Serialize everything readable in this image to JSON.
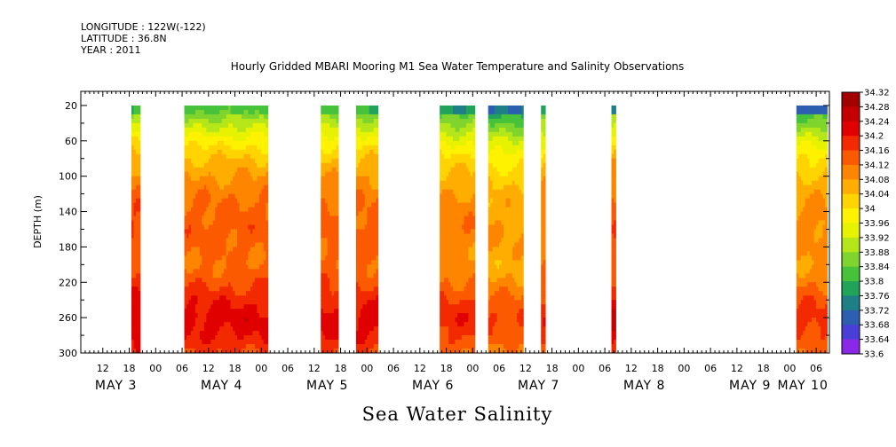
{
  "header": {
    "longitude": "LONGITUDE : 122W(-122)",
    "latitude": "LATITUDE : 36.8N",
    "year": "YEAR : 2011"
  },
  "plot_title": "Hourly Gridded MBARI Mooring M1 Sea Water Temperature and Salinity Observations",
  "variable_title": "Sea Water Salinity",
  "chart_data": {
    "type": "heatmap",
    "title": "Hourly Gridded MBARI Mooring M1 Sea Water Temperature and Salinity Observations",
    "xlabel": "",
    "ylabel": "DEPTH (m)",
    "ylim": [
      300,
      4
    ],
    "y_reversed": true,
    "y_ticks": [
      20,
      60,
      100,
      140,
      180,
      220,
      260,
      300
    ],
    "x_unit": "hours since May 3 00:00 (2011)",
    "xlim": [
      7,
      177
    ],
    "x_tick_labels": [
      "12",
      "18",
      "00",
      "06",
      "12",
      "18",
      "00",
      "06",
      "12",
      "18",
      "00",
      "06",
      "12",
      "18",
      "00",
      "06",
      "12",
      "18",
      "00",
      "06",
      "12",
      "18",
      "00",
      "06",
      "12",
      "18",
      "00",
      "06"
    ],
    "x_tick_hours": [
      12,
      18,
      24,
      30,
      36,
      42,
      48,
      54,
      60,
      66,
      72,
      78,
      84,
      90,
      96,
      102,
      108,
      114,
      120,
      126,
      132,
      138,
      144,
      150,
      156,
      162,
      168,
      174
    ],
    "date_labels": [
      "MAY  3",
      "MAY  4",
      "MAY  5",
      "MAY  6",
      "MAY  7",
      "MAY  8",
      "MAY  9",
      "MAY 10"
    ],
    "date_hours": [
      15,
      39,
      63,
      87,
      111,
      135,
      159,
      171
    ],
    "colorbar": {
      "levels": [
        34.32,
        34.28,
        34.24,
        34.2,
        34.16,
        34.12,
        34.08,
        34.04,
        34.0,
        33.96,
        33.92,
        33.88,
        33.84,
        33.8,
        33.76,
        33.72,
        33.68,
        33.64,
        33.6
      ],
      "labels": [
        "34.32",
        "34.28",
        "34.24",
        "34.2",
        "34.16",
        "34.12",
        "34.08",
        "34.04",
        "34",
        "33.96",
        "33.92",
        "33.88",
        "33.84",
        "33.8",
        "33.76",
        "33.72",
        "33.68",
        "33.64",
        "33.6"
      ],
      "colors": [
        "#a30000",
        "#c40000",
        "#e00000",
        "#f32a00",
        "#fb5a00",
        "#fe8500",
        "#ffad00",
        "#ffd400",
        "#fff200",
        "#e6f200",
        "#b5e61a",
        "#7fd42d",
        "#46c23b",
        "#21a35a",
        "#1f7f86",
        "#2d5fb0",
        "#4a3ed8",
        "#8a28e8",
        "#d81ae6"
      ]
    },
    "depth_profile_pattern": {
      "depths": [
        20,
        40,
        60,
        80,
        100,
        120,
        140,
        160,
        180,
        200,
        220,
        240,
        260,
        280,
        300
      ],
      "values": [
        33.86,
        33.94,
        34.02,
        34.08,
        34.12,
        34.15,
        34.17,
        34.18,
        34.17,
        34.16,
        34.19,
        34.23,
        34.26,
        34.24,
        34.2
      ]
    },
    "segments": [
      {
        "start_hour": 18.5,
        "end_hour": 20.5,
        "surface": 33.84,
        "bias": 0.02
      },
      {
        "start_hour": 30.5,
        "end_hour": 49.5,
        "surface": 33.88,
        "bias": 0.0
      },
      {
        "start_hour": 61.5,
        "end_hour": 65.5,
        "surface": 33.86,
        "bias": 0.0
      },
      {
        "start_hour": 69.5,
        "end_hour": 74.5,
        "surface": 33.84,
        "bias": 0.0
      },
      {
        "start_hour": 88.5,
        "end_hour": 96.5,
        "surface": 33.8,
        "bias": -0.03
      },
      {
        "start_hour": 99.5,
        "end_hour": 107.5,
        "surface": 33.76,
        "bias": -0.06
      },
      {
        "start_hour": 111.5,
        "end_hour": 112.5,
        "surface": 33.84,
        "bias": -0.02
      },
      {
        "start_hour": 127.5,
        "end_hour": 128.5,
        "surface": 33.76,
        "bias": 0.02
      },
      {
        "start_hour": 169.5,
        "end_hour": 176.5,
        "surface": 33.74,
        "bias": -0.04
      }
    ]
  }
}
